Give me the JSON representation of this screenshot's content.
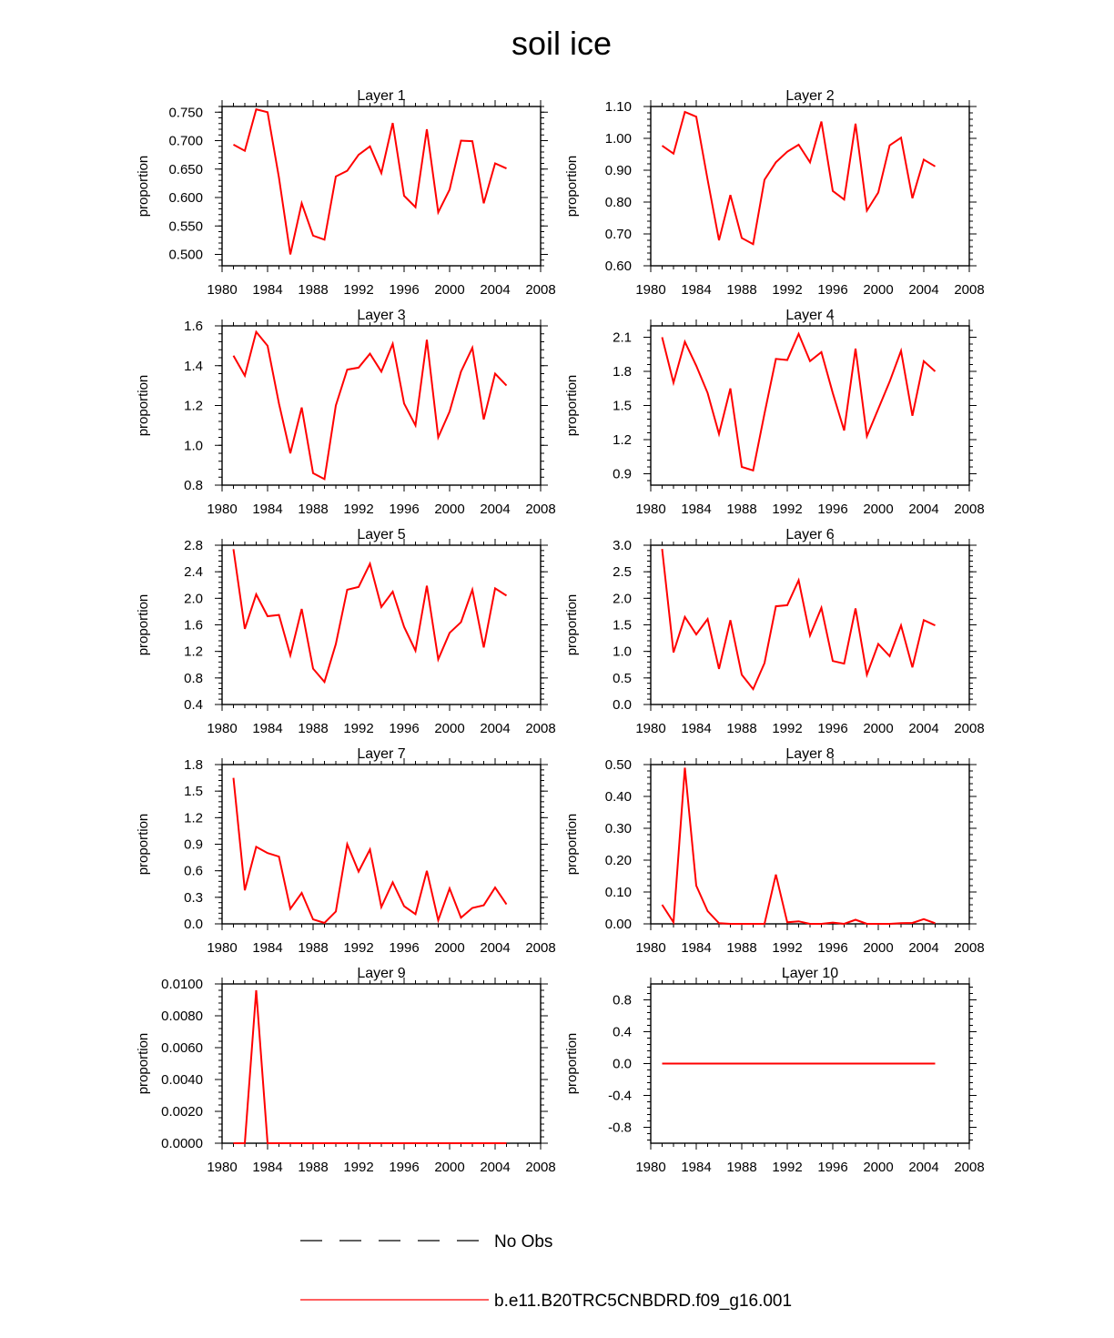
{
  "figure": {
    "title": "soil ice",
    "legend": [
      {
        "label": "No Obs",
        "color": "#000000",
        "style": "dashed"
      },
      {
        "label": "b.e11.B20TRC5CNBDRD.f09_g16.001",
        "color": "#ff0000",
        "style": "solid"
      }
    ]
  },
  "chart_data": [
    {
      "type": "line",
      "title": "Layer 1",
      "xlabel": "",
      "ylabel": "proportion",
      "xlim": [
        1980,
        2008
      ],
      "xticks": [
        "1980",
        "1984",
        "1988",
        "1992",
        "1996",
        "2000",
        "2004",
        "2008"
      ],
      "ylim": [
        0.48,
        0.76
      ],
      "yticks": [
        "0.500",
        "0.550",
        "0.600",
        "0.650",
        "0.700",
        "0.750"
      ],
      "series": [
        {
          "color": "#ff0000",
          "x": [
            1981,
            1982,
            1983,
            1984,
            1985,
            1986,
            1987,
            1988,
            1989,
            1990,
            1991,
            1992,
            1993,
            1994,
            1995,
            1996,
            1997,
            1998,
            1999,
            2000,
            2001,
            2002,
            2003,
            2004,
            2005
          ],
          "y": [
            0.693,
            0.682,
            0.755,
            0.75,
            0.635,
            0.5,
            0.59,
            0.533,
            0.526,
            0.637,
            0.647,
            0.675,
            0.69,
            0.643,
            0.731,
            0.603,
            0.583,
            0.72,
            0.574,
            0.614,
            0.7,
            0.699,
            0.59,
            0.66,
            0.651
          ]
        }
      ]
    },
    {
      "type": "line",
      "title": "Layer 2",
      "xlabel": "",
      "ylabel": "proportion",
      "xlim": [
        1980,
        2008
      ],
      "xticks": [
        "1980",
        "1984",
        "1988",
        "1992",
        "1996",
        "2000",
        "2004",
        "2008"
      ],
      "ylim": [
        0.6,
        1.1
      ],
      "yticks": [
        "0.60",
        "0.70",
        "0.80",
        "0.90",
        "1.00",
        "1.10"
      ],
      "series": [
        {
          "color": "#ff0000",
          "x": [
            1981,
            1982,
            1983,
            1984,
            1985,
            1986,
            1987,
            1988,
            1989,
            1990,
            1991,
            1992,
            1993,
            1994,
            1995,
            1996,
            1997,
            1998,
            1999,
            2000,
            2001,
            2002,
            2003,
            2004,
            2005
          ],
          "y": [
            0.977,
            0.952,
            1.083,
            1.068,
            0.87,
            0.68,
            0.822,
            0.687,
            0.668,
            0.87,
            0.925,
            0.958,
            0.98,
            0.925,
            1.053,
            0.835,
            0.808,
            1.046,
            0.773,
            0.83,
            0.978,
            1.002,
            0.812,
            0.933,
            0.912
          ]
        }
      ]
    },
    {
      "type": "line",
      "title": "Layer 3",
      "xlabel": "",
      "ylabel": "proportion",
      "xlim": [
        1980,
        2008
      ],
      "xticks": [
        "1980",
        "1984",
        "1988",
        "1992",
        "1996",
        "2000",
        "2004",
        "2008"
      ],
      "ylim": [
        0.8,
        1.6
      ],
      "yticks": [
        "0.8",
        "1.0",
        "1.2",
        "1.4",
        "1.6"
      ],
      "series": [
        {
          "color": "#ff0000",
          "x": [
            1981,
            1982,
            1983,
            1984,
            1985,
            1986,
            1987,
            1988,
            1989,
            1990,
            1991,
            1992,
            1993,
            1994,
            1995,
            1996,
            1997,
            1998,
            1999,
            2000,
            2001,
            2002,
            2003,
            2004,
            2005
          ],
          "y": [
            1.45,
            1.35,
            1.57,
            1.5,
            1.21,
            0.96,
            1.19,
            0.86,
            0.83,
            1.2,
            1.38,
            1.39,
            1.46,
            1.37,
            1.51,
            1.21,
            1.1,
            1.53,
            1.04,
            1.17,
            1.37,
            1.49,
            1.13,
            1.36,
            1.3
          ]
        }
      ]
    },
    {
      "type": "line",
      "title": "Layer 4",
      "xlabel": "",
      "ylabel": "proportion",
      "xlim": [
        1980,
        2008
      ],
      "xticks": [
        "1980",
        "1984",
        "1988",
        "1992",
        "1996",
        "2000",
        "2004",
        "2008"
      ],
      "ylim": [
        0.8,
        2.2
      ],
      "yticks": [
        "0.9",
        "1.2",
        "1.5",
        "1.8",
        "2.1"
      ],
      "series": [
        {
          "color": "#ff0000",
          "x": [
            1981,
            1982,
            1983,
            1984,
            1985,
            1986,
            1987,
            1988,
            1989,
            1990,
            1991,
            1992,
            1993,
            1994,
            1995,
            1996,
            1997,
            1998,
            1999,
            2000,
            2001,
            2002,
            2003,
            2004,
            2005
          ],
          "y": [
            2.1,
            1.7,
            2.06,
            1.85,
            1.61,
            1.25,
            1.65,
            0.96,
            0.93,
            1.43,
            1.91,
            1.9,
            2.13,
            1.89,
            1.97,
            1.61,
            1.28,
            2.0,
            1.23,
            1.47,
            1.71,
            1.98,
            1.41,
            1.89,
            1.8
          ]
        }
      ]
    },
    {
      "type": "line",
      "title": "Layer 5",
      "xlabel": "",
      "ylabel": "proportion",
      "xlim": [
        1980,
        2008
      ],
      "xticks": [
        "1980",
        "1984",
        "1988",
        "1992",
        "1996",
        "2000",
        "2004",
        "2008"
      ],
      "ylim": [
        0.4,
        2.8
      ],
      "yticks": [
        "0.4",
        "0.8",
        "1.2",
        "1.6",
        "2.0",
        "2.4",
        "2.8"
      ],
      "series": [
        {
          "color": "#ff0000",
          "x": [
            1981,
            1982,
            1983,
            1984,
            1985,
            1986,
            1987,
            1988,
            1989,
            1990,
            1991,
            1992,
            1993,
            1994,
            1995,
            1996,
            1997,
            1998,
            1999,
            2000,
            2001,
            2002,
            2003,
            2004,
            2005
          ],
          "y": [
            2.74,
            1.54,
            2.06,
            1.73,
            1.75,
            1.14,
            1.84,
            0.94,
            0.74,
            1.31,
            2.13,
            2.17,
            2.52,
            1.87,
            2.1,
            1.57,
            1.21,
            2.19,
            1.08,
            1.48,
            1.64,
            2.13,
            1.26,
            2.15,
            2.04
          ]
        }
      ]
    },
    {
      "type": "line",
      "title": "Layer 6",
      "xlabel": "",
      "ylabel": "proportion",
      "xlim": [
        1980,
        2008
      ],
      "xticks": [
        "1980",
        "1984",
        "1988",
        "1992",
        "1996",
        "2000",
        "2004",
        "2008"
      ],
      "ylim": [
        0.0,
        3.0
      ],
      "yticks": [
        "0.0",
        "0.5",
        "1.0",
        "1.5",
        "2.0",
        "2.5",
        "3.0"
      ],
      "series": [
        {
          "color": "#ff0000",
          "x": [
            1981,
            1982,
            1983,
            1984,
            1985,
            1986,
            1987,
            1988,
            1989,
            1990,
            1991,
            1992,
            1993,
            1994,
            1995,
            1996,
            1997,
            1998,
            1999,
            2000,
            2001,
            2002,
            2003,
            2004,
            2005
          ],
          "y": [
            2.93,
            0.98,
            1.65,
            1.32,
            1.61,
            0.67,
            1.59,
            0.56,
            0.29,
            0.78,
            1.85,
            1.87,
            2.34,
            1.3,
            1.82,
            0.82,
            0.77,
            1.81,
            0.56,
            1.14,
            0.91,
            1.49,
            0.7,
            1.59,
            1.49
          ]
        }
      ]
    },
    {
      "type": "line",
      "title": "Layer 7",
      "xlabel": "",
      "ylabel": "proportion",
      "xlim": [
        1980,
        2008
      ],
      "xticks": [
        "1980",
        "1984",
        "1988",
        "1992",
        "1996",
        "2000",
        "2004",
        "2008"
      ],
      "ylim": [
        0.0,
        1.8
      ],
      "yticks": [
        "0.0",
        "0.3",
        "0.6",
        "0.9",
        "1.2",
        "1.5",
        "1.8"
      ],
      "series": [
        {
          "color": "#ff0000",
          "x": [
            1981,
            1982,
            1983,
            1984,
            1985,
            1986,
            1987,
            1988,
            1989,
            1990,
            1991,
            1992,
            1993,
            1994,
            1995,
            1996,
            1997,
            1998,
            1999,
            2000,
            2001,
            2002,
            2003,
            2004,
            2005
          ],
          "y": [
            1.65,
            0.38,
            0.87,
            0.8,
            0.76,
            0.17,
            0.35,
            0.05,
            0.01,
            0.14,
            0.9,
            0.59,
            0.84,
            0.19,
            0.47,
            0.2,
            0.11,
            0.6,
            0.04,
            0.4,
            0.07,
            0.18,
            0.21,
            0.41,
            0.22
          ]
        }
      ]
    },
    {
      "type": "line",
      "title": "Layer 8",
      "xlabel": "",
      "ylabel": "proportion",
      "xlim": [
        1980,
        2008
      ],
      "xticks": [
        "1980",
        "1984",
        "1988",
        "1992",
        "1996",
        "2000",
        "2004",
        "2008"
      ],
      "ylim": [
        0.0,
        0.5
      ],
      "yticks": [
        "0.00",
        "0.10",
        "0.20",
        "0.30",
        "0.40",
        "0.50"
      ],
      "series": [
        {
          "color": "#ff0000",
          "x": [
            1981,
            1982,
            1983,
            1984,
            1985,
            1986,
            1987,
            1988,
            1989,
            1990,
            1991,
            1992,
            1993,
            1994,
            1995,
            1996,
            1997,
            1998,
            1999,
            2000,
            2001,
            2002,
            2003,
            2004,
            2005
          ],
          "y": [
            0.06,
            0.005,
            0.49,
            0.12,
            0.04,
            0.002,
            0.0,
            0.0,
            0.0,
            0.0,
            0.155,
            0.005,
            0.008,
            0.0,
            0.0,
            0.004,
            0.0,
            0.013,
            0.0,
            0.0,
            0.0,
            0.002,
            0.003,
            0.015,
            0.002
          ]
        }
      ]
    },
    {
      "type": "line",
      "title": "Layer 9",
      "xlabel": "",
      "ylabel": "proportion",
      "xlim": [
        1980,
        2008
      ],
      "xticks": [
        "1980",
        "1984",
        "1988",
        "1992",
        "1996",
        "2000",
        "2004",
        "2008"
      ],
      "ylim": [
        0.0,
        0.01
      ],
      "yticks": [
        "0.0000",
        "0.0020",
        "0.0040",
        "0.0060",
        "0.0080",
        "0.0100"
      ],
      "series": [
        {
          "color": "#ff0000",
          "x": [
            1981,
            1982,
            1983,
            1984,
            1985,
            1986,
            1987,
            1988,
            1989,
            1990,
            1991,
            1992,
            1993,
            1994,
            1995,
            1996,
            1997,
            1998,
            1999,
            2000,
            2001,
            2002,
            2003,
            2004,
            2005
          ],
          "y": [
            0,
            0,
            0.0096,
            0,
            0,
            0,
            0,
            0,
            0,
            0,
            0,
            0,
            0,
            0,
            0,
            0,
            0,
            0,
            0,
            0,
            0,
            0,
            0,
            0,
            0
          ]
        }
      ]
    },
    {
      "type": "line",
      "title": "Layer 10",
      "xlabel": "",
      "ylabel": "proportion",
      "xlim": [
        1980,
        2008
      ],
      "xticks": [
        "1980",
        "1984",
        "1988",
        "1992",
        "1996",
        "2000",
        "2004",
        "2008"
      ],
      "ylim": [
        -1.0,
        1.0
      ],
      "yticks": [
        "-0.8",
        "-0.4",
        "0.0",
        "0.4",
        "0.8"
      ],
      "series": [
        {
          "color": "#ff0000",
          "x": [
            1981,
            1982,
            1983,
            1984,
            1985,
            1986,
            1987,
            1988,
            1989,
            1990,
            1991,
            1992,
            1993,
            1994,
            1995,
            1996,
            1997,
            1998,
            1999,
            2000,
            2001,
            2002,
            2003,
            2004,
            2005
          ],
          "y": [
            0,
            0,
            0,
            0,
            0,
            0,
            0,
            0,
            0,
            0,
            0,
            0,
            0,
            0,
            0,
            0,
            0,
            0,
            0,
            0,
            0,
            0,
            0,
            0,
            0
          ]
        }
      ]
    }
  ]
}
